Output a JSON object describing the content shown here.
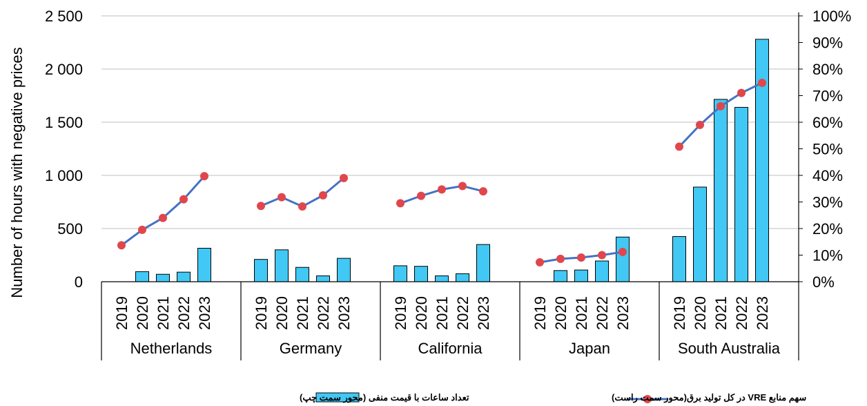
{
  "chart_data": {
    "type": "bar",
    "ylabel": "Number of hours with negative prices",
    "ylim": [
      0,
      2500
    ],
    "y_ticks": [
      "0",
      "500",
      "1 000",
      "1 500",
      "2 000",
      "2 500"
    ],
    "y2lim": [
      0,
      1.0
    ],
    "y2_ticks": [
      "0%",
      "10%",
      "20%",
      "30%",
      "40%",
      "50%",
      "60%",
      "70%",
      "80%",
      "90%",
      "100%"
    ],
    "years": [
      "2019",
      "2020",
      "2021",
      "2022",
      "2023"
    ],
    "groups": [
      {
        "name": "Netherlands",
        "hours": [
          0,
          95,
          70,
          90,
          315
        ],
        "share": [
          0.137,
          0.195,
          0.24,
          0.31,
          0.397
        ]
      },
      {
        "name": "Germany",
        "hours": [
          210,
          300,
          135,
          55,
          220
        ],
        "share": [
          0.285,
          0.318,
          0.283,
          0.325,
          0.39
        ]
      },
      {
        "name": "California",
        "hours": [
          150,
          145,
          55,
          75,
          350
        ],
        "share": [
          0.295,
          0.323,
          0.347,
          0.36,
          0.34
        ]
      },
      {
        "name": "Japan",
        "hours": [
          0,
          105,
          110,
          195,
          420
        ],
        "share": [
          0.073,
          0.086,
          0.091,
          0.1,
          0.112
        ]
      },
      {
        "name": "South Australia",
        "hours": [
          425,
          890,
          1715,
          1640,
          2280
        ],
        "share": [
          0.508,
          0.59,
          0.66,
          0.71,
          0.748
        ]
      }
    ],
    "series": [
      {
        "name": "تعداد ساعات با قیمت منفی (محور سمت چپ)",
        "kind": "bar",
        "axis": "left",
        "color": "#41C8F5"
      },
      {
        "name": "سهم منابع  VRE در کل تولید برق(محور سمت راست)",
        "kind": "line",
        "axis": "right",
        "color": "#4472C4",
        "marker_color": "#E0474C"
      }
    ],
    "grid": true,
    "legend_position": "bottom"
  }
}
